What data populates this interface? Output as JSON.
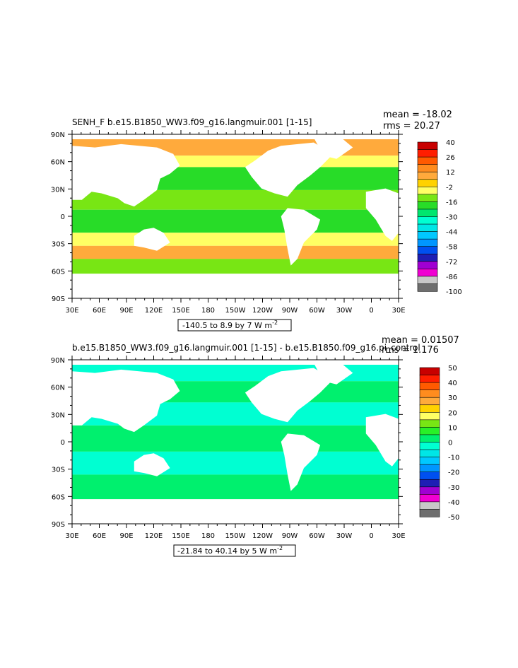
{
  "chart_data": [
    {
      "type": "heatmap",
      "title_left": "SENH_F b.e15.B1850_WW3.f09_g16.langmuir.001 [1-15]",
      "mean_label": "mean = -18.02",
      "rms_label": "rms = 20.27",
      "x_ticks": [
        "30E",
        "60E",
        "90E",
        "120E",
        "150E",
        "180",
        "150W",
        "120W",
        "90W",
        "60W",
        "30W",
        "0",
        "30E"
      ],
      "y_ticks": [
        "90N",
        "60N",
        "30N",
        "0",
        "30S",
        "60S",
        "90S"
      ],
      "contour_label": "-140.5 to 8.9 by 7  W m",
      "contour_exp": "-2",
      "colorbar_labels": [
        "40",
        "26",
        "12",
        "-2",
        "-16",
        "-30",
        "-44",
        "-58",
        "-72",
        "-86",
        "-100"
      ],
      "colorbar_colors": [
        "#c80000",
        "#ff1e00",
        "#ff5a00",
        "#ff8c1e",
        "#ffaa3c",
        "#ffd200",
        "#ffff64",
        "#78e614",
        "#28dc28",
        "#00e66e",
        "#00ffd2",
        "#00e6e6",
        "#00c8ff",
        "#0096ff",
        "#0050f0",
        "#1e1eb4",
        "#a000d2",
        "#f000d2",
        "#c8c8c8",
        "#6e6e6e"
      ]
    },
    {
      "type": "heatmap",
      "title_left": "b.e15.B1850_WW3.f09_g16.langmuir.001 [1-15] - b.e15.B1850.f09_g16.pi_control",
      "mean_label": "mean = 0.01507",
      "rms_label": "rms = 1.176",
      "x_ticks": [
        "30E",
        "60E",
        "90E",
        "120E",
        "150E",
        "180",
        "150W",
        "120W",
        "90W",
        "60W",
        "30W",
        "0",
        "30E"
      ],
      "y_ticks": [
        "90N",
        "60N",
        "30N",
        "0",
        "30S",
        "60S",
        "90S"
      ],
      "contour_label": "-21.84 to 40.14 by 5  W m",
      "contour_exp": "-2",
      "colorbar_labels": [
        "50",
        "40",
        "30",
        "20",
        "10",
        "0",
        "-10",
        "-20",
        "-30",
        "-40",
        "-50"
      ],
      "colorbar_colors": [
        "#c80000",
        "#ff1e00",
        "#ff5a00",
        "#ff8c1e",
        "#ffaa3c",
        "#ffd200",
        "#ffff64",
        "#78e614",
        "#28f028",
        "#00f06e",
        "#00ffd2",
        "#00e6e6",
        "#00c8ff",
        "#0096ff",
        "#0050f0",
        "#1e1eb4",
        "#a000d2",
        "#f000d2",
        "#c8c8c8",
        "#6e6e6e"
      ]
    }
  ]
}
